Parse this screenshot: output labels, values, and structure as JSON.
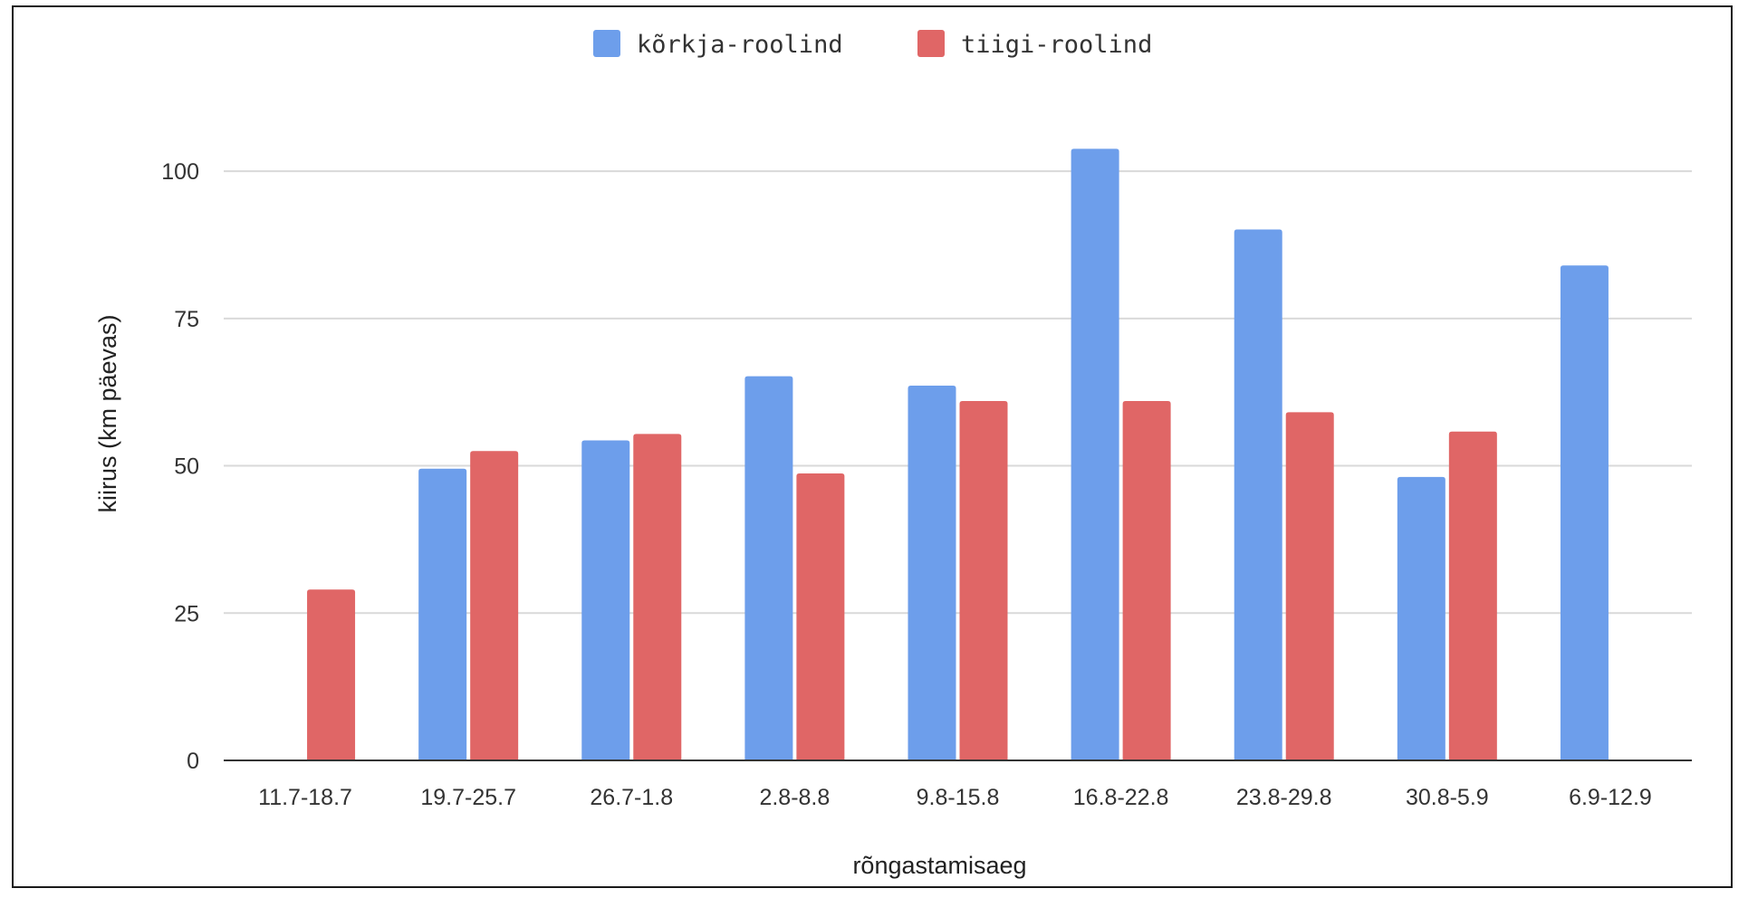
{
  "chart_data": {
    "type": "bar",
    "categories": [
      "11.7-18.7",
      "19.7-25.7",
      "26.7-1.8",
      "2.8-8.8",
      "9.8-15.8",
      "16.8-22.8",
      "23.8-29.8",
      "30.8-5.9",
      "6.9-12.9"
    ],
    "series": [
      {
        "name": "kõrkja-roolind",
        "color": "#6d9eeb",
        "values": [
          null,
          49.5,
          54.3,
          65.2,
          63.6,
          103.8,
          90.1,
          48.1,
          84.0
        ]
      },
      {
        "name": "tiigi-roolind",
        "color": "#e06666",
        "values": [
          29.0,
          52.5,
          55.4,
          48.7,
          61.0,
          61.0,
          59.1,
          55.8,
          null
        ]
      }
    ],
    "xlabel": "rõngastamisaeg",
    "ylabel": "kiirus (km päevas)",
    "ylim": [
      0,
      110
    ],
    "yticks": [
      0,
      25,
      50,
      75,
      100
    ],
    "grid": true,
    "legend": "top-center"
  }
}
